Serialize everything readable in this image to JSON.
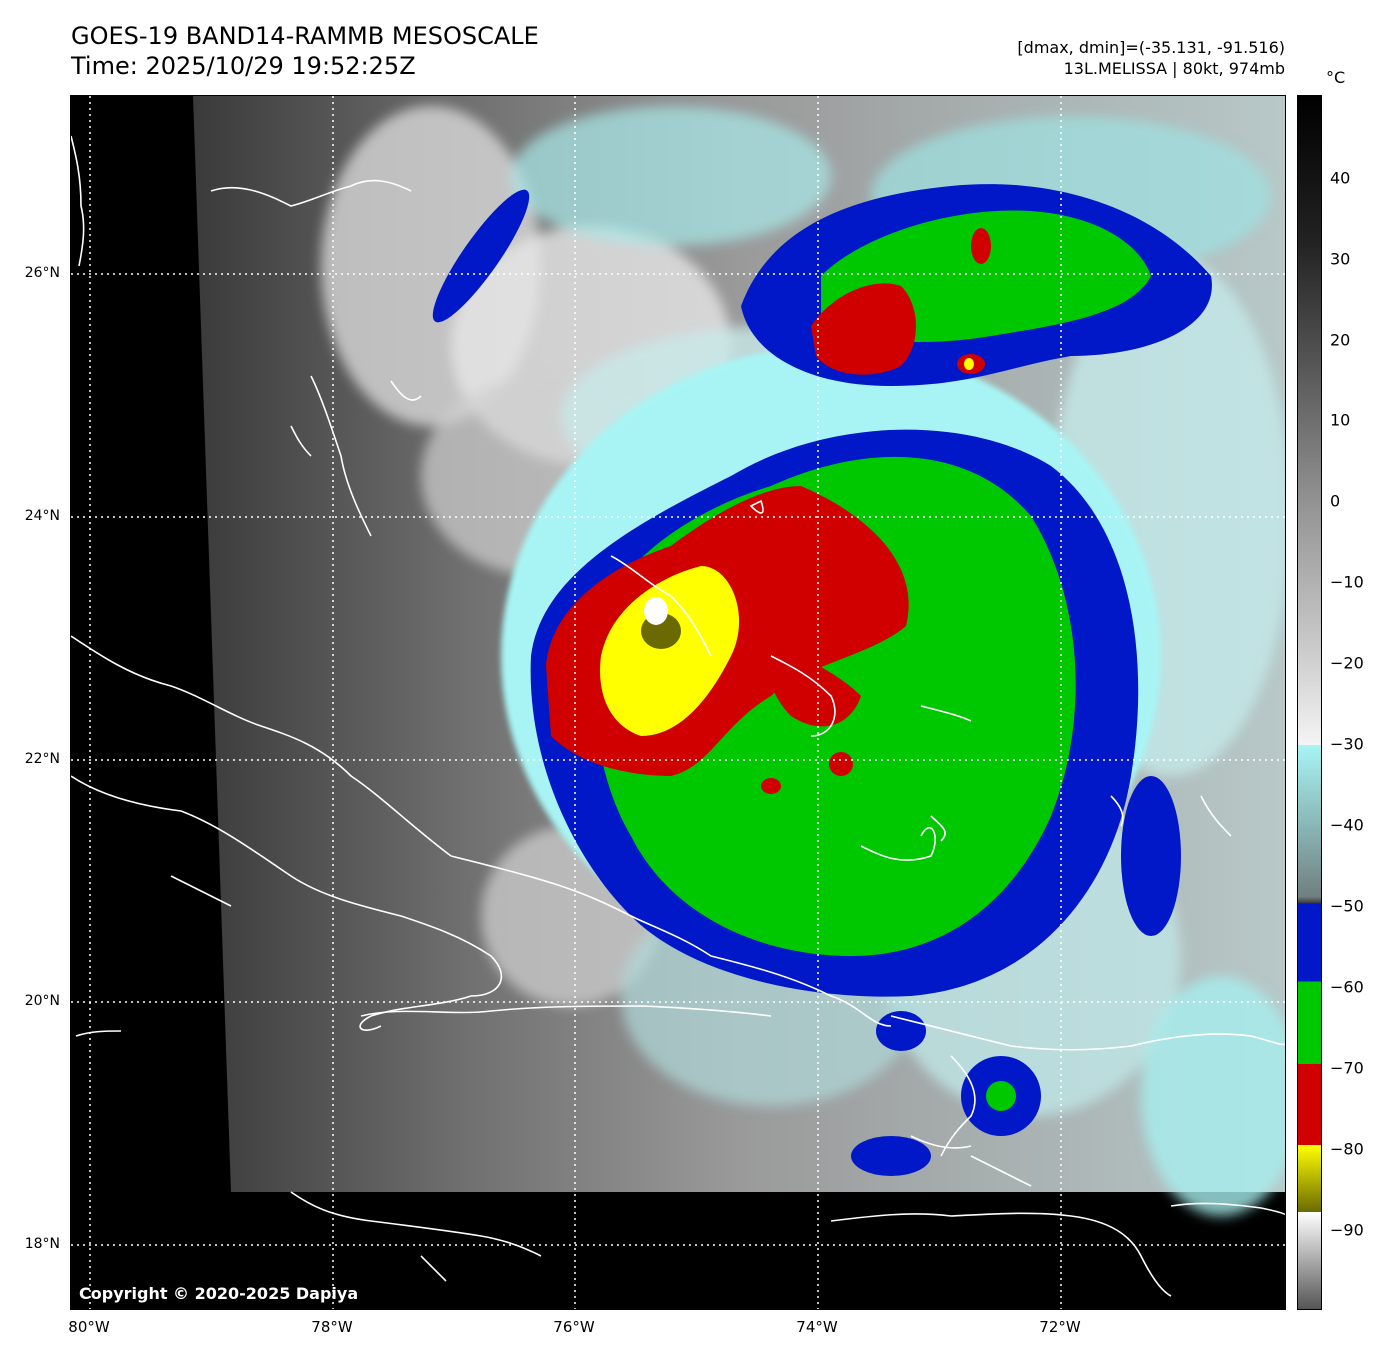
{
  "header": {
    "title_line1": "GOES-19 BAND14-RAMMB MESOSCALE",
    "title_line2": "Time: 2025/10/29 19:52:25Z",
    "range_text": "[dmax, dmin]=(-35.131, -91.516)",
    "storm_text": "13L.MELISSA | 80kt, 974mb"
  },
  "colorbar": {
    "unit": "°C",
    "ticks": [
      "40",
      "30",
      "20",
      "10",
      "0",
      "−10",
      "−20",
      "−30",
      "−40",
      "−50",
      "−60",
      "−70",
      "−80",
      "−90"
    ],
    "colors": {
      "warm_black": "#000000",
      "gray_white": "#f4f4f4",
      "cyan": "#a8f4f4",
      "blue": "#0018c8",
      "green": "#00c800",
      "red": "#d00000",
      "yellow": "#ffff00",
      "olive": "#6a6a00"
    }
  },
  "map": {
    "latitude_labels": [
      "26°N",
      "24°N",
      "22°N",
      "20°N",
      "18°N"
    ],
    "longitude_labels": [
      "80°W",
      "78°W",
      "76°W",
      "74°W",
      "72°W"
    ],
    "copyright": "Copyright © 2020-2025 Dapiya"
  }
}
